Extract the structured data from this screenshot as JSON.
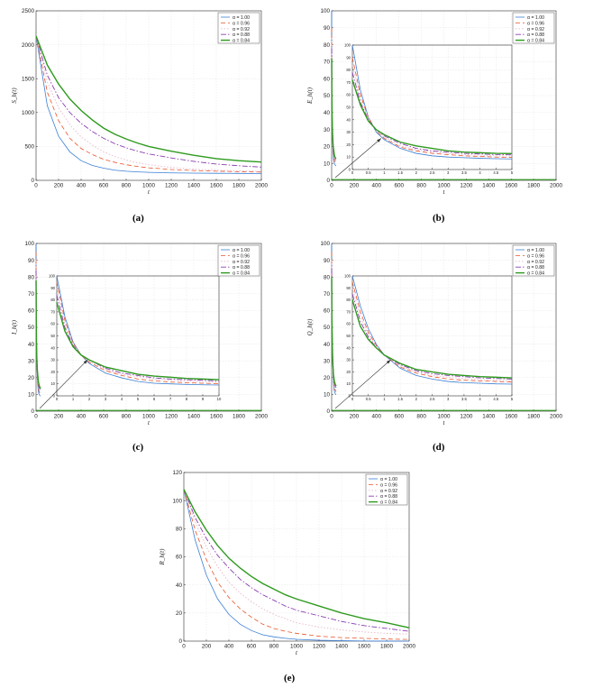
{
  "figure": {
    "panel_labels": [
      "(a)",
      "(b)",
      "(c)",
      "(d)",
      "(e)"
    ]
  },
  "legend_entries": [
    "α = 1.00",
    "α = 0.96",
    "α = 0.92",
    "α = 0.88",
    "α = 0.84"
  ],
  "series_colors": [
    "#3b7fd6",
    "#e8542a",
    "#e8b6c8",
    "#8a3fb0",
    "#2e9a1e"
  ],
  "chart_data": [
    {
      "id": "a",
      "type": "line",
      "xlabel": "t",
      "ylabel": "S_h(t)",
      "xlim": [
        0,
        2000
      ],
      "ylim": [
        0,
        2500
      ],
      "xticks": [
        0,
        200,
        400,
        600,
        800,
        1000,
        1200,
        1400,
        1600,
        1800,
        2000
      ],
      "yticks": [
        0,
        500,
        1000,
        1500,
        2000,
        2500
      ],
      "grid": true,
      "legend": "top-right",
      "x": [
        0,
        100,
        200,
        300,
        400,
        500,
        600,
        700,
        800,
        900,
        1000,
        1200,
        1400,
        1600,
        1800,
        2000
      ],
      "series": [
        {
          "name": "α = 1.00",
          "values": [
            2130,
            1100,
            650,
            420,
            290,
            220,
            180,
            150,
            135,
            125,
            118,
            110,
            106,
            104,
            102,
            100
          ]
        },
        {
          "name": "α = 0.96",
          "values": [
            2130,
            1300,
            880,
            620,
            470,
            380,
            310,
            265,
            230,
            205,
            185,
            160,
            145,
            135,
            128,
            122
          ]
        },
        {
          "name": "α = 0.92",
          "values": [
            2130,
            1450,
            1070,
            820,
            640,
            520,
            420,
            350,
            300,
            260,
            230,
            190,
            165,
            150,
            140,
            132
          ]
        },
        {
          "name": "α = 0.88",
          "values": [
            2130,
            1550,
            1220,
            1000,
            840,
            720,
            620,
            540,
            480,
            430,
            390,
            330,
            280,
            240,
            215,
            195
          ]
        },
        {
          "name": "α = 0.84",
          "values": [
            2130,
            1700,
            1420,
            1200,
            1030,
            890,
            770,
            680,
            610,
            550,
            500,
            430,
            370,
            320,
            290,
            270
          ]
        }
      ]
    },
    {
      "id": "b",
      "type": "line",
      "xlabel": "t",
      "ylabel": "E_h(t)",
      "xlim": [
        0,
        2000
      ],
      "ylim": [
        0,
        100
      ],
      "xticks": [
        0,
        200,
        400,
        600,
        800,
        1000,
        1200,
        1400,
        1600,
        1800,
        2000
      ],
      "yticks": [
        0,
        10,
        20,
        30,
        40,
        50,
        60,
        70,
        80,
        90,
        100
      ],
      "grid": true,
      "legend": "top-right",
      "inset": {
        "xlim": [
          0,
          5
        ],
        "ylim": [
          0,
          100
        ],
        "xticks": [
          0,
          0.5,
          1,
          1.5,
          2,
          2.5,
          3,
          3.5,
          4,
          4.5,
          5
        ],
        "yticks": [
          0,
          10,
          20,
          30,
          40,
          50,
          60,
          70,
          80,
          90,
          100
        ],
        "arrow_to": [
          0.9,
          25
        ]
      },
      "x": [
        0,
        0.25,
        0.5,
        0.75,
        1,
        1.5,
        2,
        2.5,
        3,
        3.5,
        4,
        4.5,
        5
      ],
      "series": [
        {
          "name": "α = 1.00",
          "values": [
            100,
            64,
            42,
            30,
            24,
            17,
            13,
            11,
            10,
            9.5,
            9,
            8.7,
            8.5
          ]
        },
        {
          "name": "α = 0.96",
          "values": [
            90,
            60,
            42,
            31,
            25,
            18,
            15,
            13,
            12,
            11,
            10.5,
            10,
            9.8
          ]
        },
        {
          "name": "α = 0.92",
          "values": [
            84,
            57,
            41,
            31,
            26,
            19,
            16,
            14,
            13,
            12,
            11.5,
            11,
            10.8
          ]
        },
        {
          "name": "α = 0.88",
          "values": [
            78,
            54,
            40,
            32,
            27,
            21,
            17,
            15,
            14,
            13,
            12.5,
            12,
            11.8
          ]
        },
        {
          "name": "α = 0.84",
          "values": [
            72,
            52,
            39,
            32,
            28,
            22,
            19,
            17,
            15,
            14,
            13.5,
            13,
            12.8
          ]
        }
      ]
    },
    {
      "id": "c",
      "type": "line",
      "xlabel": "t",
      "ylabel": "I_h(t)",
      "xlim": [
        0,
        2000
      ],
      "ylim": [
        0,
        100
      ],
      "xticks": [
        0,
        200,
        400,
        600,
        800,
        1000,
        1200,
        1400,
        1600,
        1800,
        2000
      ],
      "yticks": [
        0,
        10,
        20,
        30,
        40,
        50,
        60,
        70,
        80,
        90,
        100
      ],
      "grid": true,
      "legend": "top-right",
      "inset": {
        "xlim": [
          0,
          10
        ],
        "ylim": [
          0,
          100
        ],
        "xticks": [
          0,
          1,
          2,
          3,
          4,
          5,
          6,
          7,
          8,
          9,
          10
        ],
        "yticks": [
          0,
          10,
          20,
          30,
          40,
          50,
          60,
          70,
          80,
          90,
          100
        ],
        "arrow_to": [
          1.9,
          30
        ]
      },
      "x": [
        0,
        0.5,
        1,
        1.5,
        2,
        3,
        4,
        5,
        6,
        7,
        8,
        9,
        10
      ],
      "series": [
        {
          "name": "α = 1.00",
          "values": [
            100,
            66,
            45,
            34,
            27,
            19,
            15,
            12,
            10.5,
            10,
            9.5,
            9.2,
            9
          ]
        },
        {
          "name": "α = 0.96",
          "values": [
            95,
            63,
            44,
            34,
            28,
            21,
            17,
            14,
            12.5,
            11.5,
            11,
            10.5,
            10.2
          ]
        },
        {
          "name": "α = 0.92",
          "values": [
            90,
            60,
            43,
            34,
            29,
            22,
            18,
            16,
            14,
            13,
            12.5,
            12,
            11.5
          ]
        },
        {
          "name": "α = 0.88",
          "values": [
            84,
            57,
            42,
            34,
            30,
            23,
            19,
            17,
            15,
            14,
            13.5,
            13,
            12.5
          ]
        },
        {
          "name": "α = 0.84",
          "values": [
            78,
            54,
            41,
            34,
            30,
            24,
            21,
            18,
            16.5,
            15.5,
            14.5,
            14,
            13.5
          ]
        }
      ]
    },
    {
      "id": "d",
      "type": "line",
      "xlabel": "t",
      "ylabel": "Q_h(t)",
      "xlim": [
        0,
        2000
      ],
      "ylim": [
        0,
        100
      ],
      "xticks": [
        0,
        200,
        400,
        600,
        800,
        1000,
        1200,
        1400,
        1600,
        1800,
        2000
      ],
      "yticks": [
        0,
        10,
        20,
        30,
        40,
        50,
        60,
        70,
        80,
        90,
        100
      ],
      "grid": true,
      "legend": "top-right",
      "inset": {
        "xlim": [
          0,
          5
        ],
        "ylim": [
          0,
          100
        ],
        "xticks": [
          0,
          0.5,
          1,
          1.5,
          2,
          2.5,
          3,
          3.5,
          4,
          4.5,
          5
        ],
        "yticks": [
          0,
          10,
          20,
          30,
          40,
          50,
          60,
          70,
          80,
          90,
          100
        ],
        "arrow_to": [
          1.2,
          30
        ]
      },
      "x": [
        0,
        0.25,
        0.5,
        0.75,
        1,
        1.5,
        2,
        2.5,
        3,
        3.5,
        4,
        4.5,
        5
      ],
      "series": [
        {
          "name": "α = 1.00",
          "values": [
            100,
            75,
            56,
            43,
            34,
            23,
            17,
            14,
            12,
            11,
            10.5,
            10,
            9.8
          ]
        },
        {
          "name": "α = 0.96",
          "values": [
            95,
            70,
            53,
            42,
            34,
            24,
            19,
            16,
            14,
            13,
            12.5,
            12,
            11.5
          ]
        },
        {
          "name": "α = 0.92",
          "values": [
            90,
            66,
            51,
            41,
            34,
            25,
            20,
            17,
            15.5,
            14.5,
            13.5,
            13,
            12.5
          ]
        },
        {
          "name": "α = 0.88",
          "values": [
            85,
            62,
            49,
            40,
            34,
            26,
            21,
            18.5,
            17,
            16,
            15,
            14.5,
            14
          ]
        },
        {
          "name": "α = 0.84",
          "values": [
            80,
            58,
            47,
            40,
            34,
            27,
            22,
            20,
            18,
            17,
            16,
            15.5,
            15
          ]
        }
      ]
    },
    {
      "id": "e",
      "type": "line",
      "xlabel": "t",
      "ylabel": "R_h(t)",
      "xlim": [
        0,
        2000
      ],
      "ylim": [
        0,
        120
      ],
      "xticks": [
        0,
        200,
        400,
        600,
        800,
        1000,
        1200,
        1400,
        1600,
        1800,
        2000
      ],
      "yticks": [
        0,
        20,
        40,
        60,
        80,
        100,
        120
      ],
      "grid": true,
      "legend": "top-right",
      "x": [
        0,
        100,
        200,
        300,
        400,
        500,
        600,
        700,
        800,
        900,
        1000,
        1200,
        1400,
        1600,
        1800,
        2000
      ],
      "series": [
        {
          "name": "α = 1.00",
          "values": [
            108,
            72,
            47,
            30,
            19,
            12,
            7.5,
            4.5,
            3,
            2,
            1.3,
            0.6,
            0.3,
            0.1,
            0.05,
            0
          ]
        },
        {
          "name": "α = 0.96",
          "values": [
            108,
            79,
            58,
            42,
            31,
            23,
            17,
            12,
            9,
            7,
            5.5,
            3.5,
            2.5,
            2,
            1.5,
            1.2
          ]
        },
        {
          "name": "α = 0.92",
          "values": [
            108,
            85,
            67,
            53,
            42,
            34,
            28,
            23,
            19,
            16,
            13,
            10,
            8,
            6.5,
            5.5,
            5
          ]
        },
        {
          "name": "α = 0.88",
          "values": [
            108,
            88,
            73,
            61,
            52,
            44,
            38,
            33,
            29,
            25,
            22,
            18,
            14,
            11,
            9,
            7
          ]
        },
        {
          "name": "α = 0.84",
          "values": [
            108,
            92,
            79,
            68,
            59,
            52,
            46,
            41,
            37,
            33,
            30,
            25,
            20,
            16,
            13,
            9.5
          ]
        }
      ]
    }
  ]
}
